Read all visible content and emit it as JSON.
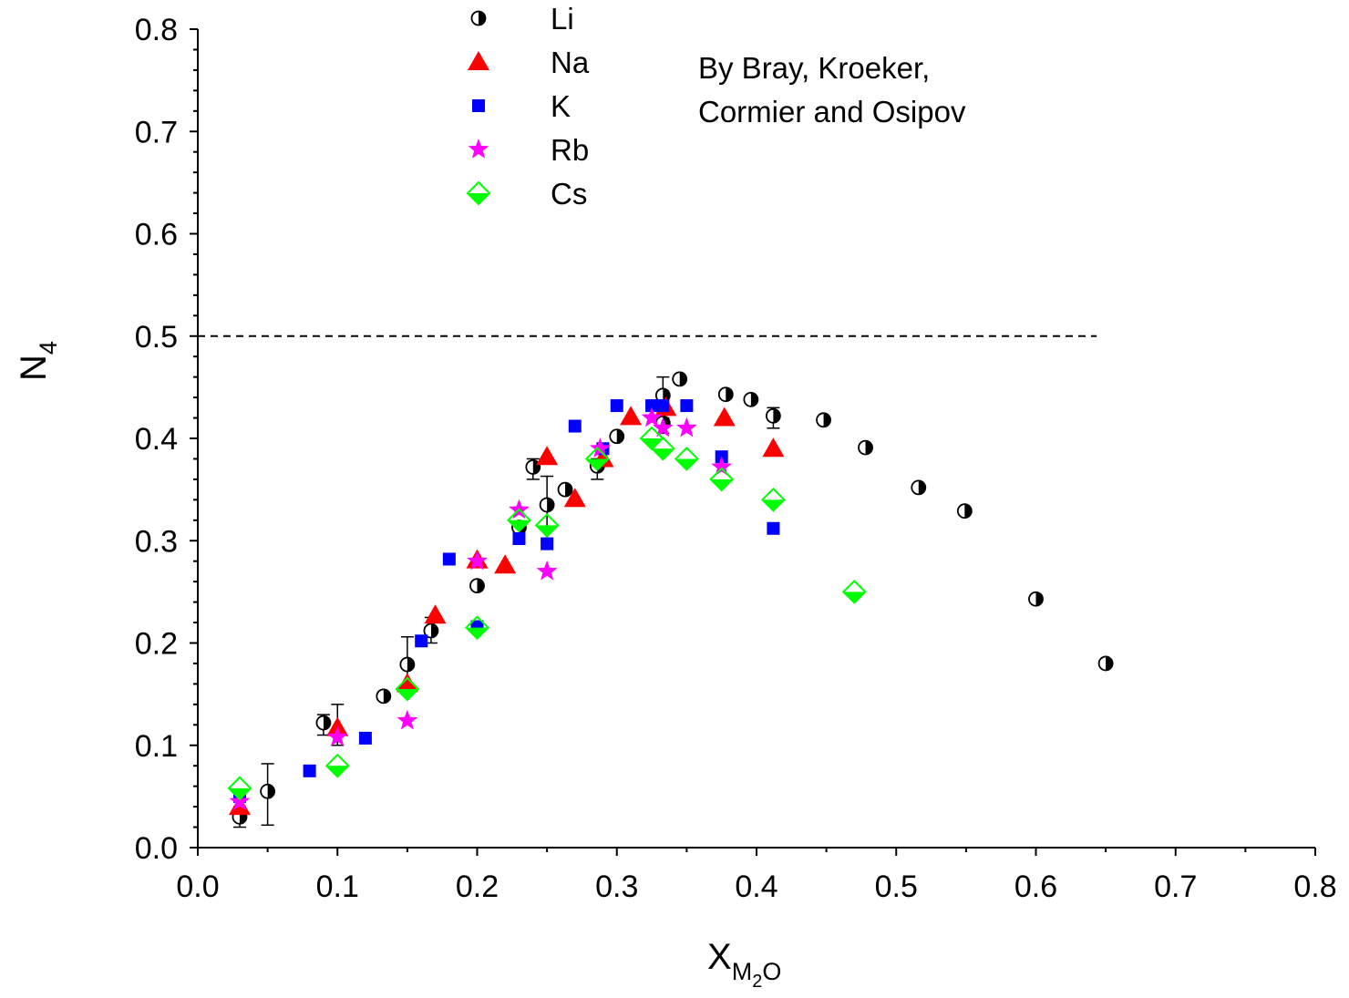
{
  "chart_data": {
    "type": "scatter",
    "title": "",
    "xlabel": "X",
    "xlabel_subscript_parts": [
      "M",
      "2",
      "O"
    ],
    "ylabel": "N",
    "ylabel_subscript": "4",
    "xlim": [
      0.0,
      0.8
    ],
    "ylim": [
      0.0,
      0.8
    ],
    "xticks": [
      "0.0",
      "0.1",
      "0.2",
      "0.3",
      "0.4",
      "0.5",
      "0.6",
      "0.7",
      "0.8"
    ],
    "yticks": [
      "0.0",
      "0.1",
      "0.2",
      "0.3",
      "0.4",
      "0.5",
      "0.6",
      "0.7",
      "0.8"
    ],
    "grid": false,
    "legend_position": "top-left",
    "annotation": [
      "By Bray, Kroeker,",
      "Cormier and Osipov"
    ],
    "reference_line": {
      "y": 0.5,
      "style": "dashed",
      "x_range": [
        0.0,
        0.65
      ]
    },
    "series": [
      {
        "name": "Li",
        "marker": "half-circle",
        "color": "#000000",
        "points": [
          [
            0.03,
            0.03
          ],
          [
            0.05,
            0.055
          ],
          [
            0.09,
            0.122
          ],
          [
            0.133,
            0.148
          ],
          [
            0.15,
            0.179
          ],
          [
            0.167,
            0.212
          ],
          [
            0.2,
            0.256
          ],
          [
            0.23,
            0.313
          ],
          [
            0.24,
            0.372
          ],
          [
            0.25,
            0.335
          ],
          [
            0.263,
            0.35
          ],
          [
            0.286,
            0.373
          ],
          [
            0.3,
            0.402
          ],
          [
            0.333,
            0.442
          ],
          [
            0.333,
            0.415
          ],
          [
            0.345,
            0.458
          ],
          [
            0.378,
            0.443
          ],
          [
            0.396,
            0.438
          ],
          [
            0.412,
            0.422
          ],
          [
            0.448,
            0.418
          ],
          [
            0.478,
            0.391
          ],
          [
            0.516,
            0.352
          ],
          [
            0.549,
            0.329
          ],
          [
            0.6,
            0.243
          ],
          [
            0.65,
            0.18
          ]
        ],
        "error_bars": [
          [
            0.03,
            0.03,
            0.02,
            0.04
          ],
          [
            0.05,
            0.055,
            0.022,
            0.082
          ],
          [
            0.09,
            0.122,
            0.11,
            0.13
          ],
          [
            0.15,
            0.179,
            0.15,
            0.206
          ],
          [
            0.167,
            0.212,
            0.2,
            0.225
          ],
          [
            0.24,
            0.372,
            0.36,
            0.38
          ],
          [
            0.25,
            0.335,
            0.3,
            0.363
          ],
          [
            0.286,
            0.373,
            0.36,
            0.38
          ],
          [
            0.333,
            0.442,
            0.428,
            0.46
          ],
          [
            0.333,
            0.415,
            0.405,
            0.42
          ],
          [
            0.412,
            0.422,
            0.41,
            0.43
          ]
        ]
      },
      {
        "name": "Na",
        "marker": "triangle",
        "color": "#ff0000",
        "points": [
          [
            0.03,
            0.04
          ],
          [
            0.1,
            0.117
          ],
          [
            0.15,
            0.16
          ],
          [
            0.17,
            0.227
          ],
          [
            0.2,
            0.281
          ],
          [
            0.22,
            0.276
          ],
          [
            0.25,
            0.382
          ],
          [
            0.27,
            0.341
          ],
          [
            0.29,
            0.38
          ],
          [
            0.31,
            0.421
          ],
          [
            0.335,
            0.43
          ],
          [
            0.377,
            0.42
          ],
          [
            0.412,
            0.39
          ]
        ],
        "error_bars": [
          [
            0.1,
            0.117,
            0.1,
            0.14
          ]
        ]
      },
      {
        "name": "K",
        "marker": "square",
        "color": "#0000ff",
        "points": [
          [
            0.03,
            0.05
          ],
          [
            0.08,
            0.075
          ],
          [
            0.12,
            0.107
          ],
          [
            0.16,
            0.202
          ],
          [
            0.18,
            0.282
          ],
          [
            0.2,
            0.216
          ],
          [
            0.23,
            0.302
          ],
          [
            0.25,
            0.297
          ],
          [
            0.27,
            0.412
          ],
          [
            0.29,
            0.39
          ],
          [
            0.3,
            0.432
          ],
          [
            0.325,
            0.432
          ],
          [
            0.333,
            0.432
          ],
          [
            0.35,
            0.432
          ],
          [
            0.375,
            0.382
          ],
          [
            0.412,
            0.312
          ]
        ]
      },
      {
        "name": "Rb",
        "marker": "star",
        "color": "#ff00ff",
        "points": [
          [
            0.03,
            0.045
          ],
          [
            0.1,
            0.108
          ],
          [
            0.15,
            0.124
          ],
          [
            0.2,
            0.28
          ],
          [
            0.23,
            0.33
          ],
          [
            0.25,
            0.27
          ],
          [
            0.288,
            0.39
          ],
          [
            0.325,
            0.42
          ],
          [
            0.333,
            0.41
          ],
          [
            0.35,
            0.41
          ],
          [
            0.375,
            0.372
          ]
        ]
      },
      {
        "name": "Cs",
        "marker": "half-diamond",
        "color": "#00ff00",
        "points": [
          [
            0.03,
            0.058
          ],
          [
            0.1,
            0.08
          ],
          [
            0.15,
            0.155
          ],
          [
            0.2,
            0.215
          ],
          [
            0.23,
            0.32
          ],
          [
            0.25,
            0.315
          ],
          [
            0.286,
            0.38
          ],
          [
            0.325,
            0.4
          ],
          [
            0.333,
            0.39
          ],
          [
            0.35,
            0.38
          ],
          [
            0.375,
            0.36
          ],
          [
            0.412,
            0.34
          ],
          [
            0.47,
            0.25
          ]
        ]
      }
    ]
  }
}
